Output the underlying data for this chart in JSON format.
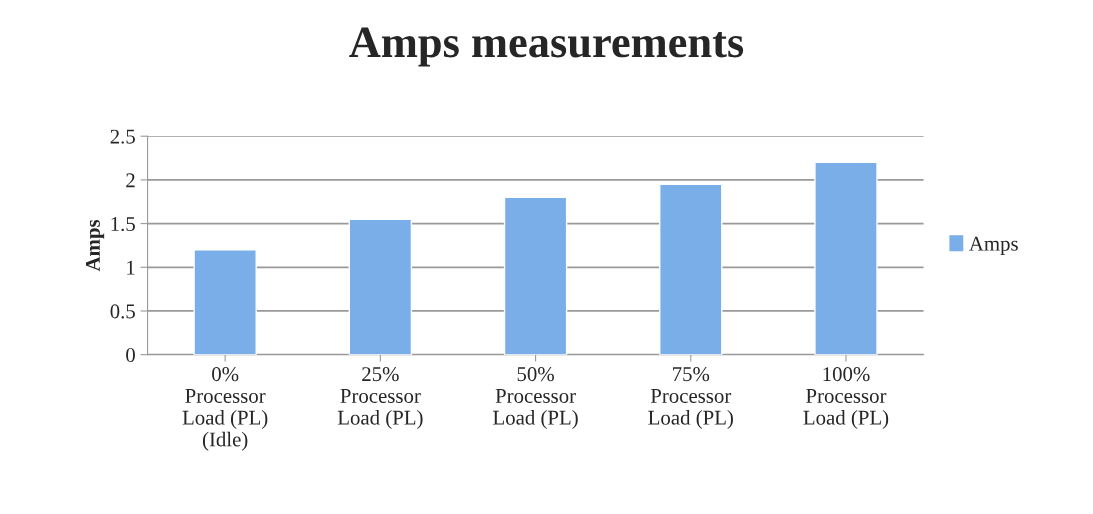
{
  "chart_data": {
    "type": "bar",
    "title": "Amps measurements",
    "ylabel": "Amps",
    "categories": [
      "0%\nProcessor\nLoad (PL)\n(Idle)",
      "25%\nProcessor\nLoad (PL)",
      "50%\nProcessor\nLoad (PL)",
      "75%\nProcessor\nLoad (PL)",
      "100%\nProcessor\nLoad (PL)"
    ],
    "series": [
      {
        "name": "Amps",
        "color": "#7aaee8",
        "values": [
          1.2,
          1.55,
          1.8,
          1.95,
          2.2
        ]
      }
    ],
    "ylim": [
      0,
      2.5
    ],
    "yticks": [
      0,
      0.5,
      1,
      1.5,
      2,
      2.5
    ],
    "grid": "y",
    "legend": "right"
  }
}
